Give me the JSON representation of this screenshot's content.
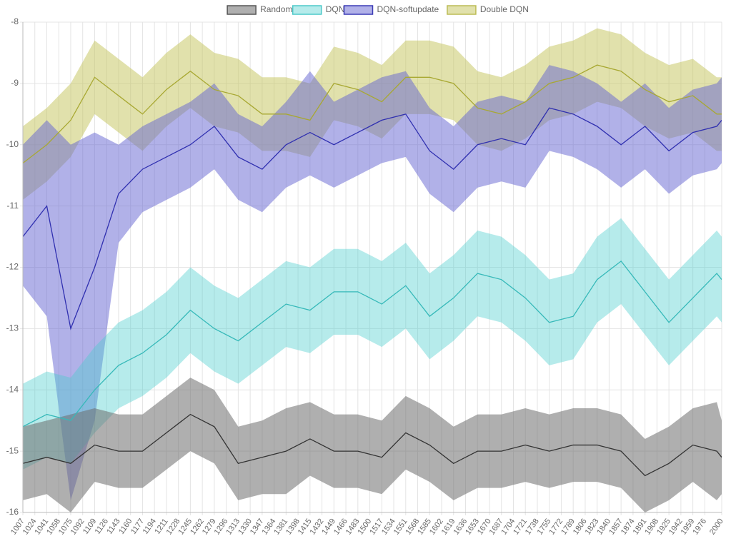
{
  "chart_data": {
    "type": "band-line",
    "x": [
      1007,
      1041,
      1075,
      1109,
      1143,
      1177,
      1211,
      1245,
      1279,
      1313,
      1347,
      1381,
      1415,
      1449,
      1483,
      1517,
      1551,
      1585,
      1619,
      1653,
      1687,
      1721,
      1755,
      1789,
      1823,
      1857,
      1891,
      1925,
      1959,
      1993,
      2000
    ],
    "xlim": [
      1007,
      2000
    ],
    "xticks": [
      1007,
      1024,
      1041,
      1058,
      1075,
      1092,
      1109,
      1126,
      1143,
      1160,
      1177,
      1194,
      1211,
      1228,
      1245,
      1262,
      1279,
      1296,
      1313,
      1330,
      1347,
      1364,
      1381,
      1398,
      1415,
      1432,
      1449,
      1466,
      1483,
      1500,
      1517,
      1534,
      1551,
      1568,
      1585,
      1602,
      1619,
      1636,
      1653,
      1670,
      1687,
      1704,
      1721,
      1738,
      1755,
      1772,
      1789,
      1806,
      1823,
      1840,
      1857,
      1874,
      1891,
      1908,
      1925,
      1942,
      1959,
      1976,
      2000
    ],
    "ylim": [
      -16,
      -8
    ],
    "yticks": [
      -16,
      -15,
      -14,
      -13,
      -12,
      -11,
      -10,
      -9,
      -8
    ],
    "grid": true,
    "legend": "top",
    "series": [
      {
        "name": "Random",
        "color": "#333333",
        "fill": "rgba(110,110,110,0.55)",
        "border": "#555555",
        "values": [
          -15.2,
          -15.1,
          -15.2,
          -14.9,
          -15.0,
          -15.0,
          -14.7,
          -14.4,
          -14.6,
          -15.2,
          -15.1,
          -15.0,
          -14.8,
          -15.0,
          -15.0,
          -15.1,
          -14.7,
          -14.9,
          -15.2,
          -15.0,
          -15.0,
          -14.9,
          -15.0,
          -14.9,
          -14.9,
          -15.0,
          -15.4,
          -15.2,
          -14.9,
          -15.0,
          -15.1
        ],
        "upper": [
          -14.6,
          -14.5,
          -14.4,
          -14.3,
          -14.4,
          -14.4,
          -14.1,
          -13.8,
          -14.0,
          -14.6,
          -14.5,
          -14.3,
          -14.2,
          -14.4,
          -14.4,
          -14.5,
          -14.1,
          -14.3,
          -14.6,
          -14.4,
          -14.4,
          -14.3,
          -14.4,
          -14.3,
          -14.3,
          -14.4,
          -14.8,
          -14.6,
          -14.3,
          -14.2,
          -14.5
        ],
        "lower": [
          -15.8,
          -15.7,
          -16.0,
          -15.5,
          -15.6,
          -15.6,
          -15.3,
          -15.0,
          -15.2,
          -15.8,
          -15.7,
          -15.7,
          -15.4,
          -15.6,
          -15.6,
          -15.7,
          -15.3,
          -15.5,
          -15.8,
          -15.6,
          -15.6,
          -15.5,
          -15.6,
          -15.5,
          -15.5,
          -15.6,
          -16.0,
          -15.8,
          -15.5,
          -15.8,
          -15.7
        ]
      },
      {
        "name": "DQN",
        "color": "#36b9b9",
        "fill": "rgba(72,206,206,0.4)",
        "border": "#4cc9c9",
        "values": [
          -14.6,
          -14.4,
          -14.5,
          -14.0,
          -13.6,
          -13.4,
          -13.1,
          -12.7,
          -13.0,
          -13.2,
          -12.9,
          -12.6,
          -12.7,
          -12.4,
          -12.4,
          -12.6,
          -12.3,
          -12.8,
          -12.5,
          -12.1,
          -12.2,
          -12.5,
          -12.9,
          -12.8,
          -12.2,
          -11.9,
          -12.4,
          -12.9,
          -12.5,
          -12.1,
          -12.2
        ],
        "upper": [
          -13.9,
          -13.7,
          -13.8,
          -13.3,
          -12.9,
          -12.7,
          -12.4,
          -12.0,
          -12.3,
          -12.5,
          -12.2,
          -11.9,
          -12.0,
          -11.7,
          -11.7,
          -11.9,
          -11.6,
          -12.1,
          -11.8,
          -11.4,
          -11.5,
          -11.8,
          -12.2,
          -12.1,
          -11.5,
          -11.2,
          -11.7,
          -12.2,
          -11.8,
          -11.4,
          -11.5
        ],
        "lower": [
          -15.3,
          -15.1,
          -15.2,
          -14.7,
          -14.3,
          -14.1,
          -13.8,
          -13.4,
          -13.7,
          -13.9,
          -13.6,
          -13.3,
          -13.4,
          -13.1,
          -13.1,
          -13.3,
          -13.0,
          -13.5,
          -13.2,
          -12.8,
          -12.9,
          -13.2,
          -13.6,
          -13.5,
          -12.9,
          -12.6,
          -13.1,
          -13.6,
          -13.2,
          -12.8,
          -12.9
        ]
      },
      {
        "name": "DQN-softupdate",
        "color": "#3030b0",
        "fill": "rgba(100,100,210,0.5)",
        "border": "#3a3ab5",
        "values": [
          -11.5,
          -11.0,
          -13.0,
          -12.0,
          -10.8,
          -10.4,
          -10.2,
          -10.0,
          -9.7,
          -10.2,
          -10.4,
          -10.0,
          -9.8,
          -10.0,
          -9.8,
          -9.6,
          -9.5,
          -10.1,
          -10.4,
          -10.0,
          -9.9,
          -10.0,
          -9.4,
          -9.5,
          -9.7,
          -10.0,
          -9.7,
          -10.1,
          -9.8,
          -9.7,
          -9.6
        ],
        "upper": [
          -10.0,
          -9.6,
          -10.0,
          -9.8,
          -10.0,
          -9.7,
          -9.5,
          -9.3,
          -9.0,
          -9.5,
          -9.7,
          -9.3,
          -8.8,
          -9.3,
          -9.1,
          -8.9,
          -8.8,
          -9.4,
          -9.7,
          -9.3,
          -9.2,
          -9.3,
          -8.7,
          -8.8,
          -9.0,
          -9.3,
          -9.0,
          -9.4,
          -9.1,
          -9.0,
          -8.9
        ],
        "lower": [
          -12.3,
          -12.8,
          -15.8,
          -14.5,
          -11.6,
          -11.1,
          -10.9,
          -10.7,
          -10.4,
          -10.9,
          -11.1,
          -10.7,
          -10.5,
          -10.7,
          -10.5,
          -10.3,
          -10.2,
          -10.8,
          -11.1,
          -10.7,
          -10.6,
          -10.7,
          -10.1,
          -10.2,
          -10.4,
          -10.7,
          -10.4,
          -10.8,
          -10.5,
          -10.4,
          -10.3
        ]
      },
      {
        "name": "Double DQN",
        "color": "#a8a832",
        "fill": "rgba(196,196,90,0.5)",
        "border": "#bcbc55",
        "values": [
          -10.3,
          -10.0,
          -9.6,
          -8.9,
          -9.2,
          -9.5,
          -9.1,
          -8.8,
          -9.1,
          -9.2,
          -9.5,
          -9.5,
          -9.6,
          -9.0,
          -9.1,
          -9.3,
          -8.9,
          -8.9,
          -9.0,
          -9.4,
          -9.5,
          -9.3,
          -9.0,
          -8.9,
          -8.7,
          -8.8,
          -9.1,
          -9.3,
          -9.2,
          -9.5,
          -9.5
        ],
        "upper": [
          -9.7,
          -9.4,
          -9.0,
          -8.3,
          -8.6,
          -8.9,
          -8.5,
          -8.2,
          -8.5,
          -8.6,
          -8.9,
          -8.9,
          -9.0,
          -8.4,
          -8.5,
          -8.7,
          -8.3,
          -8.3,
          -8.4,
          -8.8,
          -8.9,
          -8.7,
          -8.4,
          -8.3,
          -8.1,
          -8.2,
          -8.5,
          -8.7,
          -8.6,
          -8.9,
          -8.9
        ],
        "lower": [
          -10.9,
          -10.6,
          -10.2,
          -9.5,
          -9.8,
          -10.1,
          -9.7,
          -9.4,
          -9.7,
          -9.8,
          -10.1,
          -10.1,
          -10.2,
          -9.6,
          -9.7,
          -9.9,
          -9.5,
          -9.5,
          -9.6,
          -10.0,
          -10.1,
          -9.9,
          -9.6,
          -9.5,
          -9.3,
          -9.4,
          -9.7,
          -9.9,
          -9.8,
          -10.1,
          -10.1
        ]
      }
    ]
  }
}
